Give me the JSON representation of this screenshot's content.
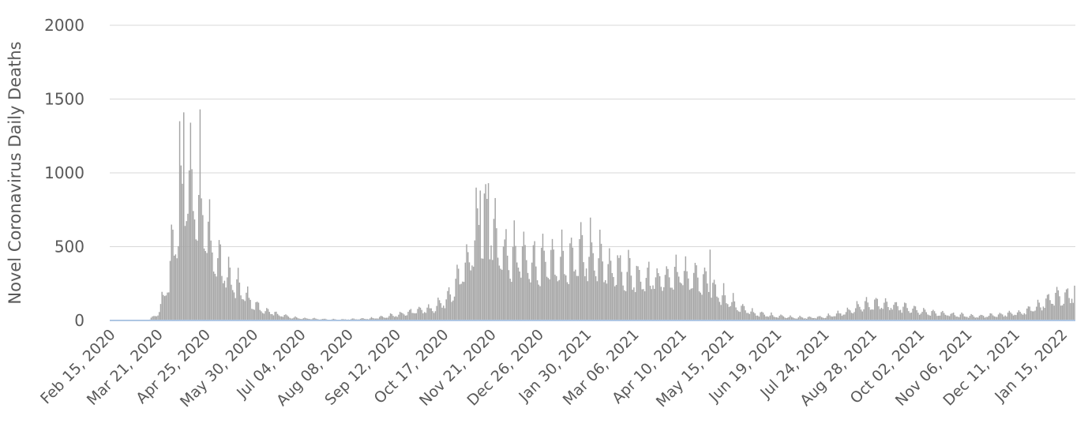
{
  "chart_data": {
    "type": "bar",
    "title": "",
    "xlabel": "",
    "ylabel": "Novel Coronavirus Daily Deaths",
    "ylim": [
      0,
      2000
    ],
    "y_ticks": [
      "0",
      "500",
      "1000",
      "1500",
      "2000"
    ],
    "x_start": "2020-02-15",
    "x_end": "2022-01-24",
    "x_tick_labels": [
      "Feb 15, 2020",
      "Mar 21, 2020",
      "Apr 25, 2020",
      "May 30, 2020",
      "Jul 04, 2020",
      "Aug 08, 2020",
      "Sep 12, 2020",
      "Oct 17, 2020",
      "Nov 21, 2020",
      "Dec 26, 2020",
      "Jan 30, 2021",
      "Mar 06, 2021",
      "Apr 10, 2021",
      "May 15, 2021",
      "Jun 19, 2021",
      "Jul 24, 2021",
      "Aug 28, 2021",
      "Oct 02, 2021",
      "Nov 06, 2021",
      "Dec 11, 2021",
      "Jan 15, 2022"
    ],
    "grid": true,
    "bar_color": "#a5a5a5",
    "weekly_average": [
      0,
      0,
      0,
      0,
      3,
      45,
      230,
      640,
      920,
      860,
      620,
      420,
      320,
      240,
      180,
      110,
      70,
      50,
      35,
      20,
      15,
      12,
      10,
      8,
      6,
      8,
      10,
      12,
      18,
      25,
      35,
      50,
      60,
      70,
      80,
      120,
      190,
      320,
      500,
      650,
      620,
      460,
      410,
      420,
      400,
      380,
      360,
      370,
      390,
      410,
      440,
      430,
      390,
      350,
      320,
      300,
      290,
      280,
      280,
      300,
      310,
      290,
      260,
      220,
      180,
      130,
      90,
      60,
      45,
      35,
      30,
      25,
      20,
      18,
      20,
      25,
      35,
      50,
      70,
      95,
      110,
      110,
      100,
      90,
      75,
      60,
      50,
      45,
      40,
      35,
      30,
      28,
      30,
      35,
      40,
      45,
      60,
      80,
      110,
      140,
      160,
      180,
      200,
      240,
      250
    ],
    "weekly_pattern": [
      0.75,
      0.7,
      1.15,
      1.45,
      1.25,
      0.95,
      0.75
    ],
    "spike_days": [
      [
        "2020-04-06",
        1350
      ],
      [
        "2020-04-07",
        1050
      ],
      [
        "2020-04-09",
        1410
      ],
      [
        "2020-04-14",
        1340
      ],
      [
        "2020-04-21",
        1430
      ],
      [
        "2020-11-10",
        900
      ],
      [
        "2020-11-13",
        880
      ],
      [
        "2020-11-16",
        860
      ],
      [
        "2020-11-19",
        930
      ],
      [
        "2021-05-01",
        480
      ]
    ]
  }
}
